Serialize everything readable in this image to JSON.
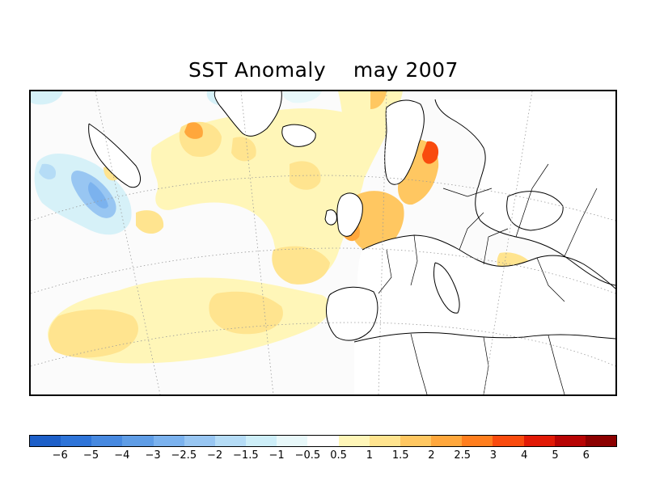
{
  "title": "SST Anomaly    may 2007",
  "legend": {
    "labels": [
      "−6",
      "−5",
      "−4",
      "−3",
      "−2.5",
      "−2",
      "−1.5",
      "−1",
      "−0.5",
      "0.5",
      "1",
      "1.5",
      "2",
      "2.5",
      "3",
      "4",
      "5",
      "6"
    ],
    "colors": [
      "#1d5fc8",
      "#2e74d8",
      "#4789e0",
      "#5f9de6",
      "#7bb2ee",
      "#98c6f2",
      "#b5dcf6",
      "#cdeef8",
      "#e8f8fa",
      "#ffffff",
      "#fff6b8",
      "#ffe48f",
      "#ffc761",
      "#ffa73c",
      "#ff7e1e",
      "#f94b0e",
      "#e11a06",
      "#b70404",
      "#8c0000"
    ]
  },
  "colors": {
    "ocean_neutral": "#fbfbfb",
    "land": "#ffffff",
    "coast": "#000000"
  }
}
